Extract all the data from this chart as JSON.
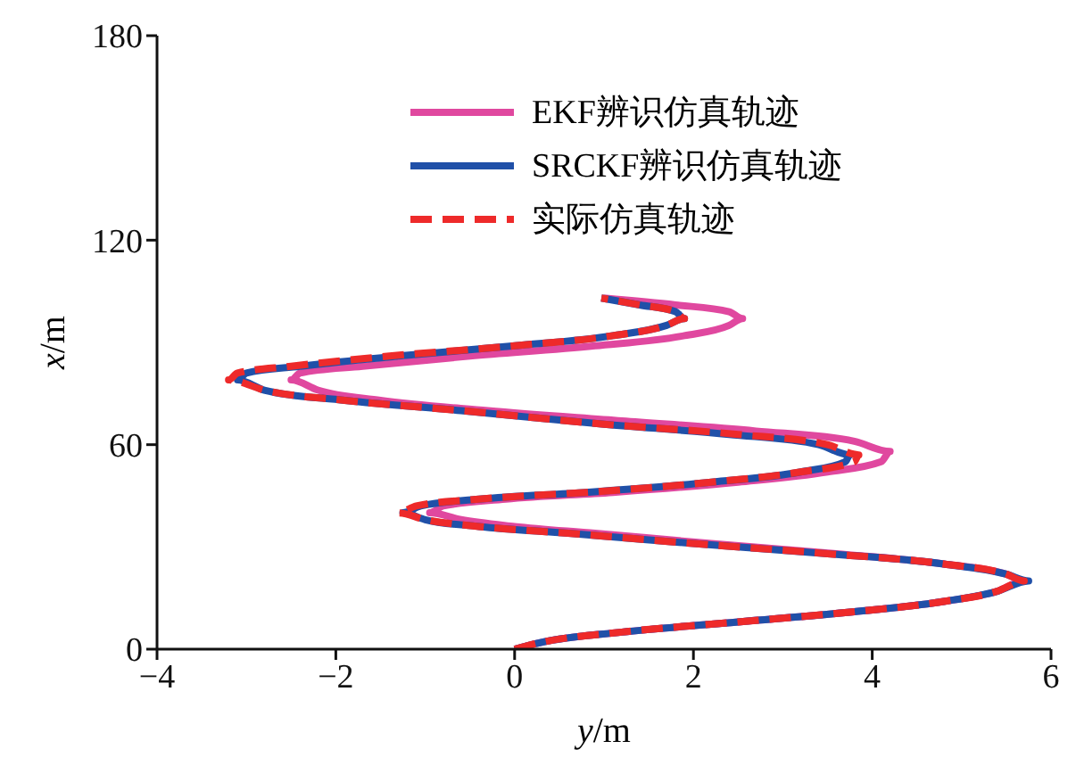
{
  "chart_data": {
    "type": "line",
    "xlabel": "y/m",
    "ylabel": "x/m",
    "xlim": [
      -4,
      6
    ],
    "xticks": [
      -4,
      -2,
      0,
      2,
      4,
      6
    ],
    "ylim": [
      0,
      180
    ],
    "yticks": [
      0,
      60,
      120,
      180
    ],
    "grid": false,
    "legend": "top",
    "marker": "none",
    "series": [
      {
        "name": "EKF辨识仿真轨迹",
        "color": "#e0489f",
        "line_style": "solid",
        "x": [
          0,
          0.3,
          1.2,
          2.5,
          3.8,
          4.8,
          5.4,
          5.7,
          5.5,
          4.8,
          3.6,
          2.2,
          0.9,
          0,
          -0.6,
          -0.95,
          -0.8,
          -0.1,
          1.1,
          2.5,
          3.5,
          4.1,
          4.2,
          3.8,
          2.7,
          1.2,
          -0.3,
          -1.5,
          -2.2,
          -2.5,
          -2.4,
          -1.7,
          -0.5,
          0.9,
          1.9,
          2.4,
          2.55,
          2.4,
          1.8,
          1.0
        ],
        "values": [
          0,
          2,
          5,
          8,
          11,
          14,
          17,
          20,
          22,
          25,
          28,
          31,
          34,
          36,
          38,
          40,
          42,
          44,
          46,
          49,
          52,
          55,
          58,
          61,
          64,
          67,
          70,
          73,
          76,
          79,
          81,
          83,
          86,
          89,
          92,
          95,
          97,
          99,
          101,
          103
        ]
      },
      {
        "name": "SRCKF辨识仿真轨迹",
        "color": "#2050a8",
        "line_style": "solid",
        "x": [
          0,
          0.3,
          1.2,
          2.5,
          3.8,
          4.8,
          5.4,
          5.75,
          5.5,
          4.8,
          3.5,
          2,
          0.6,
          -0.4,
          -1.0,
          -1.25,
          -1.05,
          -0.4,
          0.8,
          2.2,
          3.2,
          3.7,
          3.75,
          3.4,
          2.4,
          1,
          -0.6,
          -1.9,
          -2.8,
          -3.1,
          -3.0,
          -2.4,
          -1.3,
          0,
          1.1,
          1.7,
          1.9,
          1.8,
          1.4,
          0.97
        ],
        "values": [
          0,
          2,
          5,
          8,
          11,
          14,
          17,
          20,
          22,
          25,
          28,
          31,
          34,
          36,
          38,
          40,
          42,
          44,
          46,
          49,
          52,
          55,
          57,
          60,
          63,
          66,
          70,
          73,
          76,
          79,
          81,
          83,
          86,
          89,
          92,
          95,
          97,
          99,
          101,
          103
        ]
      },
      {
        "name": "实际仿真轨迹",
        "color": "#ee2a2a",
        "line_style": "dashed",
        "x": [
          0,
          0.3,
          1.2,
          2.5,
          3.8,
          4.8,
          5.4,
          5.7,
          5.5,
          4.8,
          3.5,
          2,
          0.6,
          -0.4,
          -1.0,
          -1.3,
          -1.1,
          -0.4,
          0.8,
          2.2,
          3.2,
          3.8,
          3.85,
          3.5,
          2.5,
          1,
          -0.6,
          -1.9,
          -2.8,
          -3.2,
          -3.1,
          -2.5,
          -1.4,
          0,
          1.1,
          1.7,
          1.9,
          1.8,
          1.4,
          0.97
        ],
        "values": [
          0,
          2,
          5,
          8,
          11,
          14,
          17,
          20,
          22,
          25,
          28,
          31,
          34,
          36,
          38,
          40,
          42,
          44,
          46,
          49,
          52,
          55,
          57,
          60,
          63,
          66,
          70,
          73,
          76,
          79,
          81,
          83,
          86,
          89,
          92,
          95,
          97,
          99,
          101,
          103
        ]
      }
    ]
  }
}
